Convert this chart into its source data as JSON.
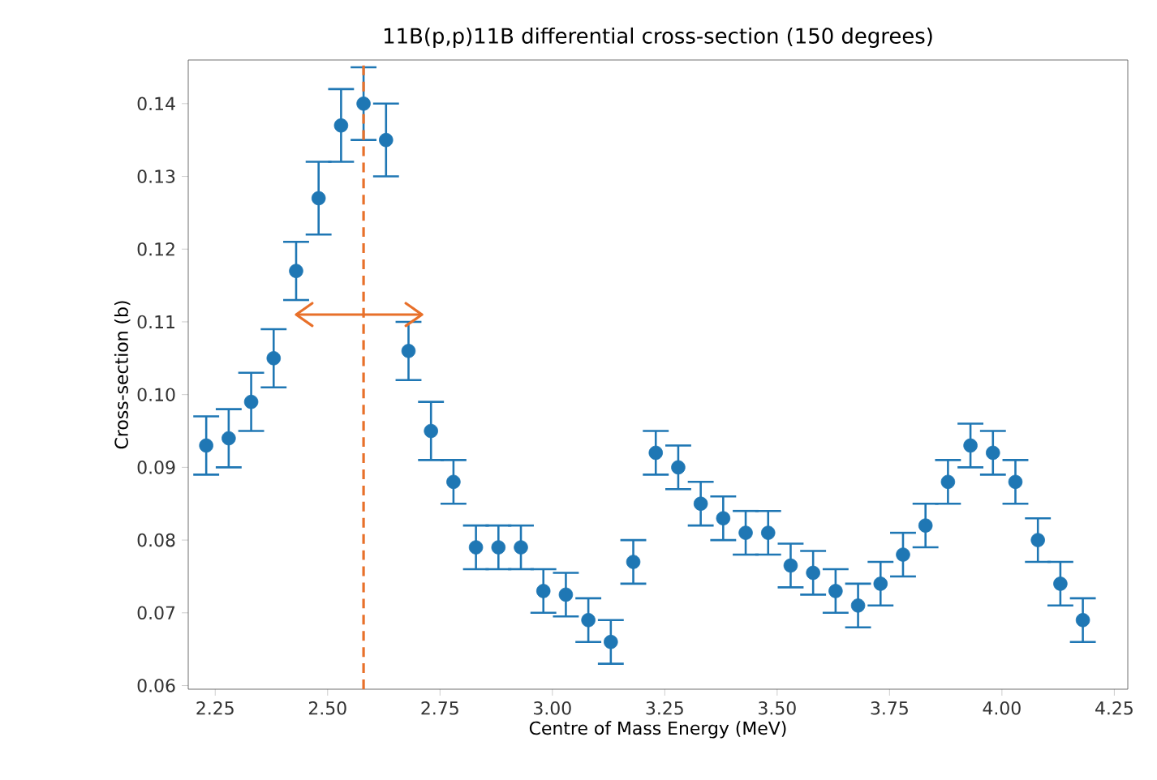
{
  "chart_data": {
    "type": "scatter",
    "title": "11B(p,p)11B differential cross-section (150 degrees)",
    "xlabel": "Centre of Mass Energy (MeV)",
    "ylabel": "Cross-section (b)",
    "xlim": [
      2.19,
      4.28
    ],
    "ylim": [
      0.0595,
      0.146
    ],
    "xticks": [
      {
        "value": 2.25,
        "label": "2.25"
      },
      {
        "value": 2.5,
        "label": "2.50"
      },
      {
        "value": 2.75,
        "label": "2.75"
      },
      {
        "value": 3.0,
        "label": "3.00"
      },
      {
        "value": 3.25,
        "label": "3.25"
      },
      {
        "value": 3.5,
        "label": "3.50"
      },
      {
        "value": 3.75,
        "label": "3.75"
      },
      {
        "value": 4.0,
        "label": "4.00"
      },
      {
        "value": 4.25,
        "label": "4.25"
      }
    ],
    "yticks": [
      {
        "value": 0.06,
        "label": "0.06"
      },
      {
        "value": 0.07,
        "label": "0.07"
      },
      {
        "value": 0.08,
        "label": "0.08"
      },
      {
        "value": 0.09,
        "label": "0.09"
      },
      {
        "value": 0.1,
        "label": "0.10"
      },
      {
        "value": 0.11,
        "label": "0.11"
      },
      {
        "value": 0.12,
        "label": "0.12"
      },
      {
        "value": 0.13,
        "label": "0.13"
      },
      {
        "value": 0.14,
        "label": "0.14"
      }
    ],
    "grid": false,
    "series": [
      {
        "marker": "circle",
        "color": "#1f77b4",
        "x": [
          2.23,
          2.28,
          2.33,
          2.38,
          2.43,
          2.48,
          2.53,
          2.58,
          2.63,
          2.68,
          2.73,
          2.78,
          2.83,
          2.88,
          2.93,
          2.98,
          3.03,
          3.08,
          3.13,
          3.18,
          3.23,
          3.28,
          3.33,
          3.38,
          3.43,
          3.48,
          3.53,
          3.58,
          3.63,
          3.68,
          3.73,
          3.78,
          3.83,
          3.88,
          3.93,
          3.98,
          4.03,
          4.08,
          4.13,
          4.18
        ],
        "values": [
          0.093,
          0.094,
          0.099,
          0.105,
          0.117,
          0.127,
          0.137,
          0.14,
          0.135,
          0.106,
          0.095,
          0.088,
          0.079,
          0.079,
          0.079,
          0.073,
          0.0725,
          0.069,
          0.066,
          0.077,
          0.092,
          0.09,
          0.085,
          0.083,
          0.081,
          0.081,
          0.0765,
          0.0755,
          0.073,
          0.071,
          0.074,
          0.078,
          0.082,
          0.088,
          0.093,
          0.092,
          0.088,
          0.08,
          0.074,
          0.069
        ],
        "errors": [
          0.004,
          0.004,
          0.004,
          0.004,
          0.004,
          0.005,
          0.005,
          0.005,
          0.005,
          0.004,
          0.004,
          0.003,
          0.003,
          0.003,
          0.003,
          0.003,
          0.003,
          0.003,
          0.003,
          0.003,
          0.003,
          0.003,
          0.003,
          0.003,
          0.003,
          0.003,
          0.003,
          0.003,
          0.003,
          0.003,
          0.003,
          0.003,
          0.003,
          0.003,
          0.003,
          0.003,
          0.003,
          0.003,
          0.003,
          0.003
        ]
      },
      {
        "type": "line",
        "color": "#e8702a",
        "x": [
          2.43,
          2.71
        ],
        "values": [
          0.111,
          0.111
        ]
      }
    ],
    "ref_lines": [
      {
        "axis": "x",
        "value": 2.58,
        "color": "#e8702a",
        "line_style": "dashed"
      }
    ]
  }
}
